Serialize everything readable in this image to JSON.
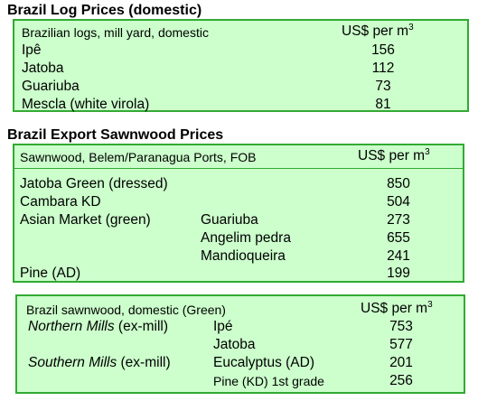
{
  "log_prices": {
    "title": "Brazil Log Prices (domestic)",
    "header_label": "Brazilian logs, mill yard, domestic",
    "unit": "US$ per m",
    "unit_sup": "3",
    "rows": [
      {
        "name": "Ipê",
        "value": "156"
      },
      {
        "name": "Jatoba",
        "value": "112"
      },
      {
        "name": "Guariuba",
        "value": "73"
      },
      {
        "name": "Mescla (white virola)",
        "value": "81"
      }
    ]
  },
  "export_sawnwood": {
    "title": "Brazil Export Sawnwood Prices",
    "header_label": "Sawnwood, Belem/Paranagua Ports, FOB",
    "unit": "US$ per m",
    "unit_sup": "3",
    "rows": [
      {
        "name": "Jatoba Green (dressed)",
        "sub": "",
        "value": "850"
      },
      {
        "name": "Cambara KD",
        "sub": "",
        "value": "504"
      },
      {
        "name": "Asian Market (green)",
        "sub": "Guariuba",
        "value": "273"
      },
      {
        "name": "",
        "sub": "Angelim pedra",
        "value": "655"
      },
      {
        "name": "",
        "sub": "Mandioqueira",
        "value": "241"
      },
      {
        "name": "Pine (AD)",
        "sub": "",
        "value": "199"
      }
    ]
  },
  "domestic_sawnwood": {
    "header_label": "Brazil sawnwood, domestic (Green)",
    "unit": "US$ per m",
    "unit_sup": "3",
    "northern_italic": "Northern Mills",
    "northern_rest": " (ex-mill)",
    "southern_italic": "Southern Mills",
    "southern_rest": " (ex-mill)",
    "rows": [
      {
        "name": "Ipé",
        "value": "753"
      },
      {
        "name": "Jatoba",
        "value": "577"
      },
      {
        "name": "Eucalyptus (AD)",
        "value": "201"
      },
      {
        "name": "Pine (KD) 1st grade",
        "value": "256"
      }
    ]
  }
}
